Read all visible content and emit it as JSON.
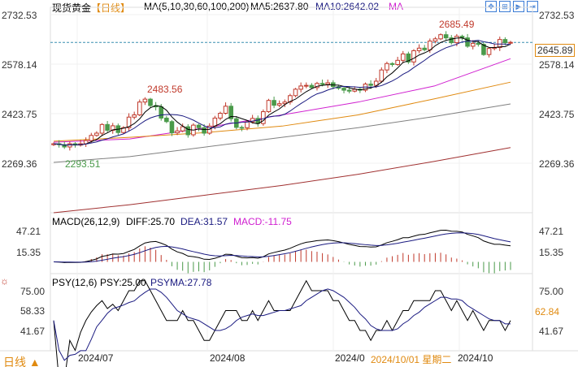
{
  "header": {
    "name": "现货黄金",
    "period": "【日线】",
    "indicator": "MA(5,10,30,60,100,200)",
    "ma5": "MA5:2637.80",
    "ma10": "MA10:2642.02",
    "ma_more": "MA"
  },
  "toolbar": [
    "move-icon",
    "zoom-in-icon",
    "play-icon",
    "exit-icon"
  ],
  "price_axis": {
    "ticks": [
      "2732.53",
      "2578.14",
      "2423.75",
      "2269.36"
    ],
    "current": "2645.89"
  },
  "annotations": {
    "high": "2685.49",
    "mid": "2483.56",
    "low": "2293.51"
  },
  "macd": {
    "title": "MACD(26,12,9)",
    "diff": "DIFF:25.70",
    "dea": "DEA:31.57",
    "macd": "MACD:-11.75",
    "ticks": [
      "47.21",
      "15.35"
    ]
  },
  "psy": {
    "title": "PSY(12,6)",
    "psy": "PSY:25.00",
    "psyma": "PSYMA:27.78",
    "ticks": [
      "75.00",
      "58.33",
      "41.67"
    ],
    "current": "62.84"
  },
  "dates": [
    "2024/07",
    "2024/08",
    "2024/0",
    "2024/10"
  ],
  "cursor_date": "2024/10/01  星期二",
  "period_button": "日线 ▲",
  "colors": {
    "up": "#c0392b",
    "down": "#4a9a4a",
    "ma5": "#000000",
    "ma10": "#1a1a80",
    "ma30": "#d020d0",
    "ma60": "#e08a10",
    "ma100": "#808080",
    "ma200": "#a03030"
  },
  "chart_data": {
    "type": "candlestick",
    "title": "现货黄金 日线",
    "ylim": [
      2180,
      2760
    ],
    "closes": [
      2330,
      2327,
      2320,
      2330,
      2326,
      2330,
      2340,
      2356,
      2363,
      2390,
      2372,
      2386,
      2365,
      2380,
      2413,
      2420,
      2460,
      2469,
      2449,
      2445,
      2410,
      2399,
      2364,
      2370,
      2383,
      2358,
      2388,
      2380,
      2363,
      2385,
      2410,
      2425,
      2447,
      2408,
      2381,
      2380,
      2398,
      2409,
      2393,
      2430,
      2465,
      2450,
      2455,
      2460,
      2480,
      2500,
      2510,
      2512,
      2505,
      2518,
      2515,
      2520,
      2508,
      2503,
      2497,
      2494,
      2500,
      2497,
      2516,
      2512,
      2525,
      2560,
      2580,
      2577,
      2590,
      2610,
      2585,
      2620,
      2628,
      2623,
      2650,
      2657,
      2670,
      2660,
      2645,
      2665,
      2660,
      2634,
      2643,
      2640,
      2608,
      2627,
      2630,
      2655,
      2645,
      2646
    ],
    "long_ma": {
      "ma30": [
        2335,
        2345,
        2380,
        2420,
        2460,
        2510,
        2595
      ],
      "ma60": [
        2338,
        2350,
        2365,
        2385,
        2420,
        2470,
        2522
      ],
      "ma100": [
        2272,
        2290,
        2320,
        2350,
        2380,
        2415,
        2454
      ],
      "ma200": [
        2115,
        2140,
        2170,
        2200,
        2235,
        2275,
        2318
      ]
    }
  }
}
